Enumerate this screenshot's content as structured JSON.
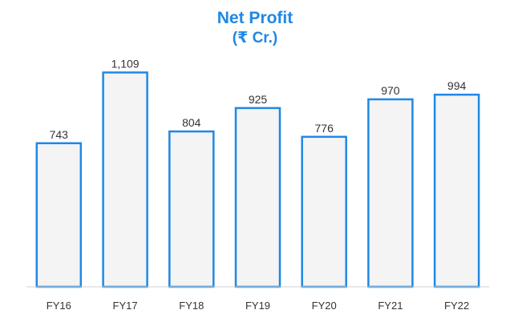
{
  "chart_data": {
    "type": "bar",
    "title": "Net Profit",
    "subtitle": "(₹ Cr.)",
    "categories": [
      "FY16",
      "FY17",
      "FY18",
      "FY19",
      "FY20",
      "FY21",
      "FY22"
    ],
    "values": [
      743,
      1109,
      804,
      925,
      776,
      970,
      994
    ],
    "value_labels": [
      "743",
      "1,109",
      "804",
      "925",
      "776",
      "970",
      "994"
    ],
    "ylim": [
      0,
      1200
    ],
    "grid": false,
    "legend": "none",
    "bar_color": "#f4f4f4",
    "accent_color": "#1e88e5"
  }
}
